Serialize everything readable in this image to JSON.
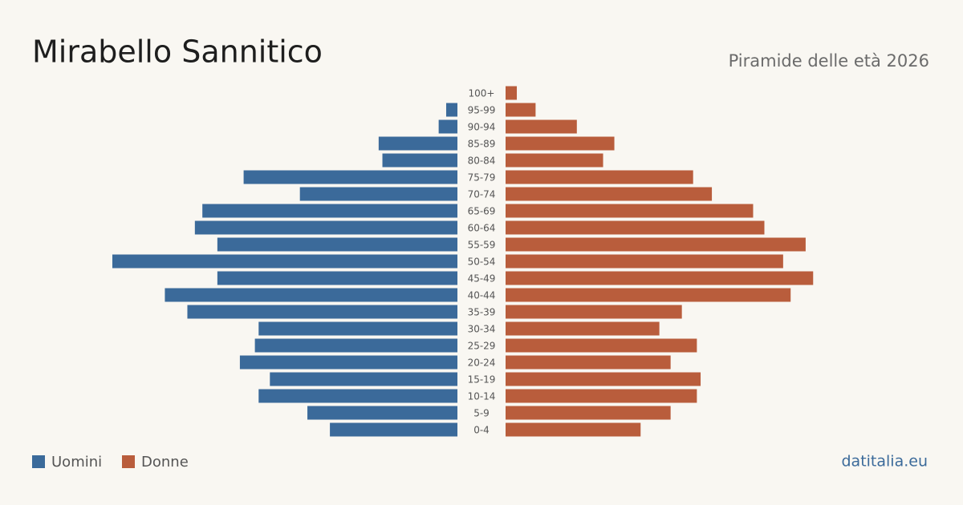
{
  "chart_data": {
    "type": "pyramid",
    "title": "Mirabello Sannitico",
    "subtitle": "Piramide delle età 2026",
    "source": "datitalia.eu",
    "categories": [
      "100+",
      "95-99",
      "90-94",
      "85-89",
      "80-84",
      "75-79",
      "70-74",
      "65-69",
      "60-64",
      "55-59",
      "50-54",
      "45-49",
      "40-44",
      "35-39",
      "30-34",
      "25-29",
      "20-24",
      "15-19",
      "10-14",
      "5-9",
      "0-4"
    ],
    "series": [
      {
        "name": "Uomini",
        "color": "#3b6a9a",
        "values": [
          0,
          3,
          5,
          21,
          20,
          57,
          42,
          68,
          70,
          64,
          92,
          64,
          78,
          72,
          53,
          54,
          58,
          50,
          53,
          40,
          34
        ]
      },
      {
        "name": "Donne",
        "color": "#b95d3c",
        "values": [
          3,
          8,
          19,
          29,
          26,
          50,
          55,
          66,
          69,
          80,
          74,
          82,
          76,
          47,
          41,
          51,
          44,
          52,
          51,
          44,
          36
        ]
      }
    ]
  }
}
